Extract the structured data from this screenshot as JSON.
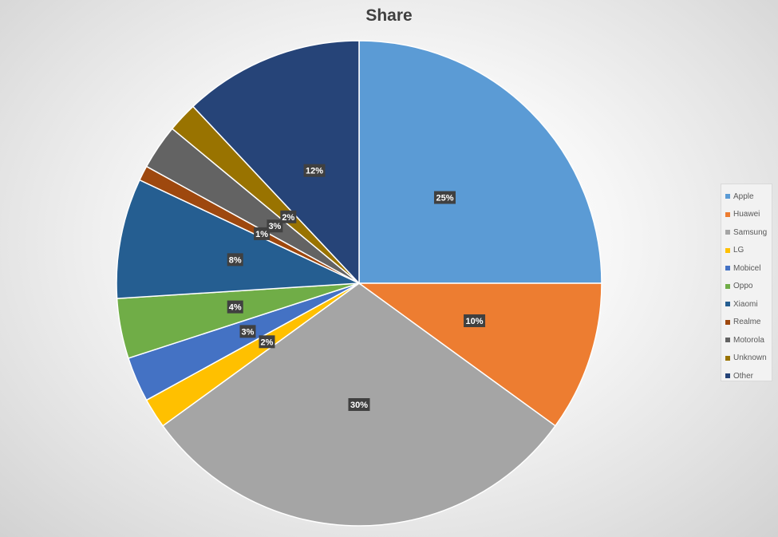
{
  "chart_data": {
    "type": "pie",
    "title": "Share",
    "legend_position": "right",
    "slices": [
      {
        "label": "Apple",
        "value": 25,
        "display": "25%",
        "color": "#5b9bd5"
      },
      {
        "label": "Huawei",
        "value": 10,
        "display": "10%",
        "color": "#ed7d31"
      },
      {
        "label": "Samsung",
        "value": 30,
        "display": "30%",
        "color": "#a5a5a5"
      },
      {
        "label": "LG",
        "value": 2,
        "display": "2%",
        "color": "#ffc000"
      },
      {
        "label": "Mobicel",
        "value": 3,
        "display": "3%",
        "color": "#4472c4"
      },
      {
        "label": "Oppo",
        "value": 4,
        "display": "4%",
        "color": "#70ad47"
      },
      {
        "label": "Xiaomi",
        "value": 8,
        "display": "8%",
        "color": "#255e91"
      },
      {
        "label": "Realme",
        "value": 1,
        "display": "1%",
        "color": "#9e480e"
      },
      {
        "label": "Motorola",
        "value": 3,
        "display": "3%",
        "color": "#636363"
      },
      {
        "label": "Unknown",
        "value": 2,
        "display": "2%",
        "color": "#997300"
      },
      {
        "label": "Other",
        "value": 12,
        "display": "12%",
        "color": "#264478"
      }
    ]
  }
}
